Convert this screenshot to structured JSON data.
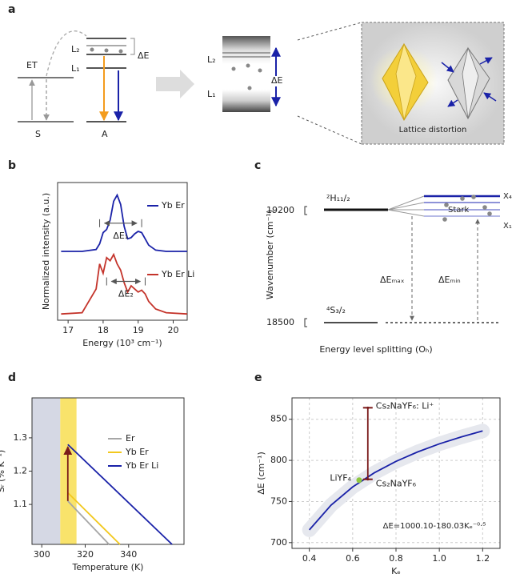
{
  "panel_labels": [
    "a",
    "b",
    "c",
    "d",
    "e"
  ],
  "panel_a": {
    "et": "ET",
    "s": "S",
    "a": "A",
    "l2": "L₂",
    "l1": "L₁",
    "delta_e": "ΔE",
    "l2_right": "L₂",
    "l1_right": "L₁",
    "delta_e_right": "ΔE",
    "box_caption": "Lattice distortion"
  },
  "panel_c": {
    "ylabel": "Wavenumber (cm⁻¹)",
    "yticks": [
      19200,
      18500
    ],
    "upper_level": "²H₁₁/₂",
    "lower_level": "⁴S₃/₂",
    "x4": "X₄",
    "x1": "X₁",
    "stark": "Stark",
    "delta_max": "ΔEₘₐₓ",
    "delta_min": "ΔEₘᵢₙ",
    "xlabel": "Energy level splitting (Oₕ)"
  },
  "chart_data": [
    {
      "type": "line",
      "xlabel": "Energy (10³ cm⁻¹)",
      "ylabel": "Normalized intensity (a.u.)",
      "x": [
        16.8,
        17.4,
        17.8,
        17.9,
        18.0,
        18.1,
        18.2,
        18.3,
        18.4,
        18.5,
        18.6,
        18.7,
        18.8,
        18.9,
        19.0,
        19.1,
        19.2,
        19.3,
        19.5,
        19.8,
        20.4
      ],
      "series": [
        {
          "name": "Yb Er",
          "color": "#1a22a8",
          "values": [
            1.1,
            1.1,
            1.13,
            1.22,
            1.4,
            1.45,
            1.6,
            1.9,
            2.0,
            1.85,
            1.5,
            1.3,
            1.32,
            1.38,
            1.42,
            1.4,
            1.3,
            1.2,
            1.12,
            1.1,
            1.1
          ]
        },
        {
          "name": "Yb Er Li",
          "color": "#c4342b",
          "values": [
            0.1,
            0.12,
            0.5,
            0.9,
            0.75,
            1.0,
            0.95,
            1.05,
            0.9,
            0.8,
            0.6,
            0.45,
            0.55,
            0.5,
            0.45,
            0.48,
            0.42,
            0.3,
            0.18,
            0.12,
            0.1
          ]
        }
      ],
      "xlim": [
        16.7,
        20.4
      ],
      "ylim": [
        0,
        2.2
      ],
      "xticks": [
        17,
        18,
        19,
        20
      ],
      "annotations": [
        "ΔE₁",
        "ΔE₂"
      ]
    },
    {
      "type": "line",
      "xlabel": "Temperature (K)",
      "ylabel": "Sᵣ (% K⁻¹)",
      "series": [
        {
          "name": "Er",
          "color": "#a6a6a6",
          "x": [
            312,
            331
          ],
          "values": [
            1.11,
            0.98
          ]
        },
        {
          "name": "Yb Er",
          "color": "#f2c81e",
          "x": [
            312,
            336
          ],
          "values": [
            1.135,
            0.98
          ]
        },
        {
          "name": "Yb Er Li",
          "color": "#1a22a8",
          "x": [
            312,
            360
          ],
          "values": [
            1.28,
            0.98
          ]
        }
      ],
      "xlim": [
        295.5,
        365.5
      ],
      "ylim": [
        0.98,
        1.42
      ],
      "xticks": [
        300,
        320,
        340
      ],
      "yticks": [
        1.1,
        1.2,
        1.3
      ],
      "bands": [
        {
          "from": 295.5,
          "to": 308.5,
          "color": "#d5d8e4"
        },
        {
          "from": 308.5,
          "to": 316,
          "color": "#f9e36b"
        }
      ]
    },
    {
      "type": "line",
      "xlabel": "Kₑ",
      "ylabel": "ΔE (cm⁻¹)",
      "x": [
        0.4,
        0.5,
        0.6,
        0.7,
        0.8,
        0.9,
        1.0,
        1.1,
        1.2
      ],
      "series": [
        {
          "color": "#1a22a8",
          "values": [
            715.5,
            745.5,
            767.7,
            784.9,
            798.8,
            810.3,
            820.1,
            828.4,
            835.8
          ]
        }
      ],
      "points": {
        "x": [
          0.63,
          0.67,
          0.67
        ],
        "values": [
          776,
          777,
          864
        ],
        "labels": [
          "LiYF₄",
          "Cs₂NaYF₆",
          "Cs₂NaYF₆: Li⁺"
        ],
        "colors": [
          "#8dc63f",
          "#7a1a1a",
          "#7a1a1a"
        ]
      },
      "formula": "ΔE=1000.10-180.03Kₑ⁻⁰·⁵",
      "xlim": [
        0.32,
        1.28
      ],
      "ylim": [
        693,
        876
      ],
      "xticks": [
        0.4,
        0.6,
        0.8,
        {
          "value": 1,
          "label": "1.0"
        },
        1.2
      ],
      "yticks": [
        700,
        750,
        800,
        850
      ],
      "grid": true
    }
  ]
}
